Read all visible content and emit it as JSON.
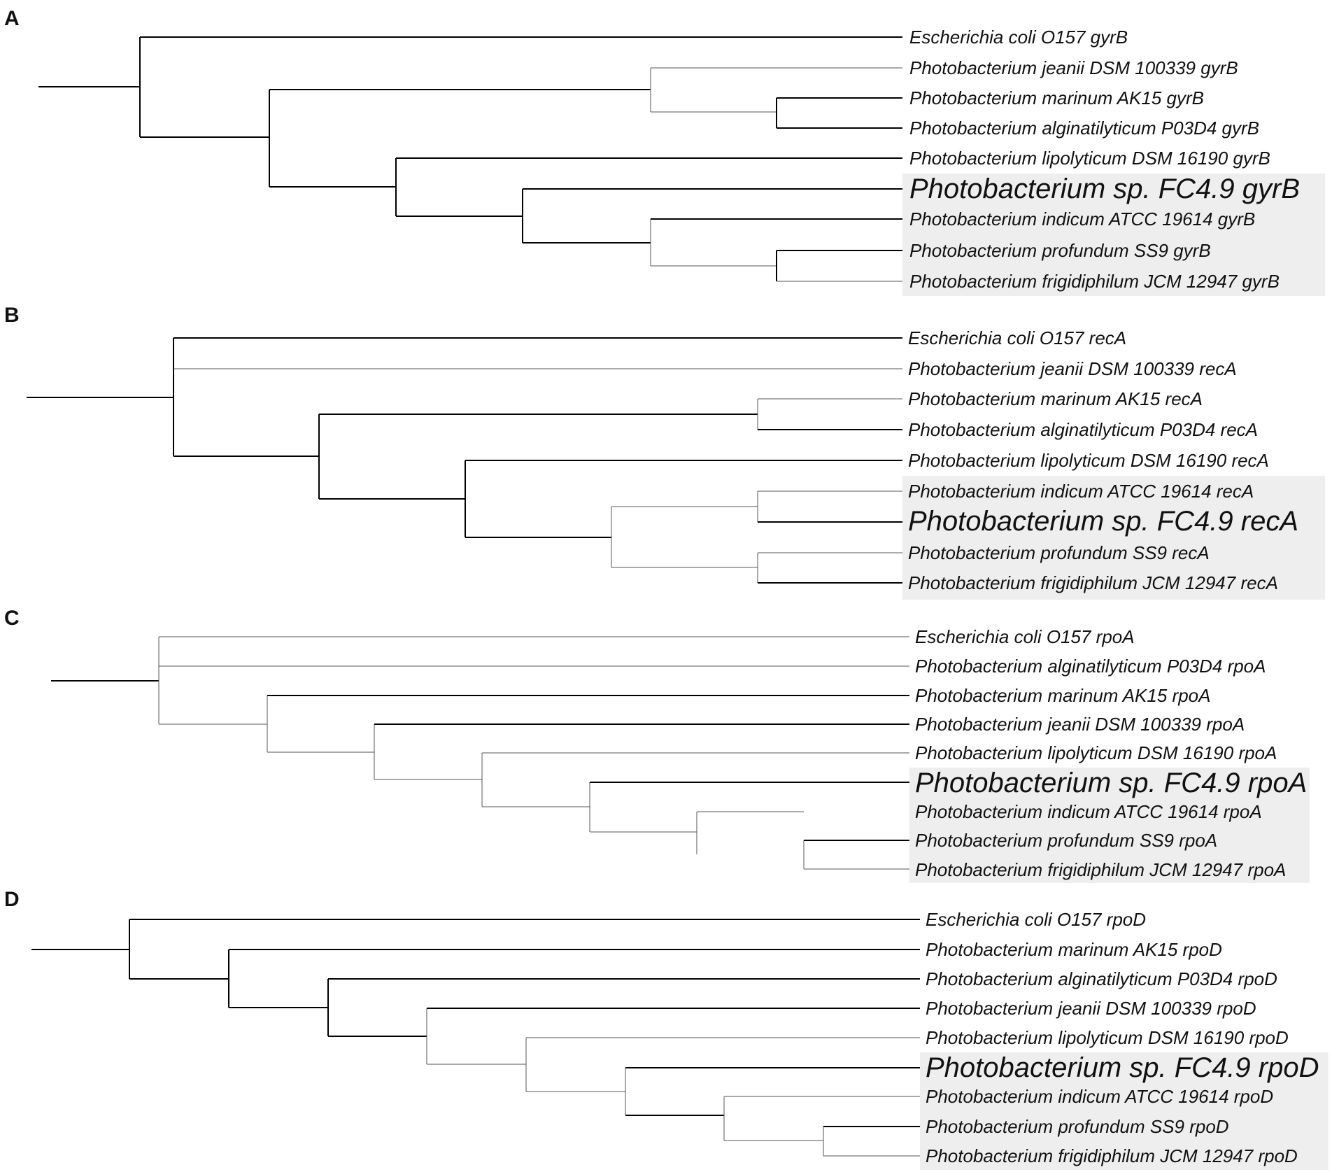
{
  "panels": [
    {
      "label": "A",
      "taxa": [
        "Escherichia coli O157 gyrB",
        "Photobacterium jeanii DSM 100339 gyrB",
        "Photobacterium marinum AK15 gyrB",
        "Photobacterium alginatilyticum P03D4 gyrB",
        "Photobacterium lipolyticum DSM 16190 gyrB",
        "Photobacterium sp. FC4.9 gyrB",
        "Photobacterium indicum ATCC 19614 gyrB",
        "Photobacterium profundum SS9 gyrB",
        "Photobacterium frigidiphilum JCM 12947 gyrB"
      ],
      "emphasized_taxon": 5,
      "highlighted_taxa": [
        5,
        6,
        7,
        8
      ]
    },
    {
      "label": "B",
      "taxa": [
        "Escherichia coli O157 recA",
        "Photobacterium jeanii DSM 100339 recA",
        "Photobacterium marinum AK15 recA",
        "Photobacterium alginatilyticum P03D4 recA",
        "Photobacterium lipolyticum DSM 16190 recA",
        "Photobacterium indicum ATCC 19614 recA",
        "Photobacterium sp. FC4.9 recA",
        "Photobacterium profundum SS9 recA",
        "Photobacterium frigidiphilum JCM 12947 recA"
      ],
      "emphasized_taxon": 6,
      "highlighted_taxa": [
        5,
        6,
        7,
        8
      ]
    },
    {
      "label": "C",
      "taxa": [
        "Escherichia coli O157 rpoA",
        "Photobacterium alginatilyticum P03D4 rpoA",
        "Photobacterium marinum AK15 rpoA",
        "Photobacterium jeanii DSM 100339 rpoA",
        "Photobacterium lipolyticum DSM 16190 rpoA",
        "Photobacterium sp. FC4.9 rpoA",
        "Photobacterium indicum ATCC 19614 rpoA",
        "Photobacterium profundum SS9 rpoA",
        "Photobacterium frigidiphilum JCM 12947 rpoA"
      ],
      "emphasized_taxon": 5,
      "highlighted_taxa": [
        5,
        6,
        7,
        8
      ]
    },
    {
      "label": "D",
      "taxa": [
        "Escherichia coli O157 rpoD",
        "Photobacterium marinum AK15 rpoD",
        "Photobacterium alginatilyticum P03D4 rpoD",
        "Photobacterium jeanii DSM 100339 rpoD",
        "Photobacterium lipolyticum DSM 16190 rpoD",
        "Photobacterium sp. FC4.9 rpoD",
        "Photobacterium indicum ATCC 19614 rpoD",
        "Photobacterium profundum SS9 rpoD",
        "Photobacterium frigidiphilum JCM 12947 rpoD"
      ],
      "emphasized_taxon": 5,
      "highlighted_taxa": [
        5,
        6,
        7,
        8
      ]
    }
  ]
}
